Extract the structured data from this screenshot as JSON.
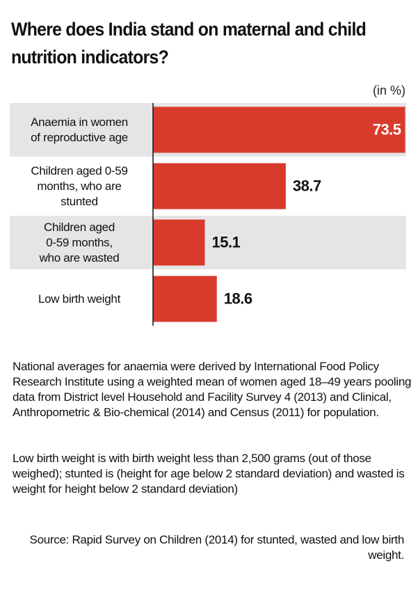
{
  "chart_data": {
    "type": "bar",
    "orientation": "horizontal",
    "title": "Where does India stand on maternal and child nutrition indicators?",
    "unit_label": "(in %)",
    "categories": [
      "Anaemia in women\nof reproductive age",
      "Children aged 0-59\nmonths, who are\nstunted",
      "Children aged\n0-59 months,\nwho are wasted",
      "Low birth weight"
    ],
    "values": [
      73.5,
      38.7,
      15.1,
      18.6
    ],
    "color": "#d83b2c",
    "xlim": [
      0,
      74
    ],
    "notes": [
      "National averages for anaemia were derived by International Food Policy Research Institute using a weighted mean of women aged 18–49 years pooling data from District level Household and Facility Survey 4 (2013) and Clinical, Anthropometric & Bio-chemical (2014) and Census (2011) for population.",
      "Low birth weight is with birth weight less than 2,500 grams (out of those weighed); stunted is (height for age below 2 standard deviation) and wasted is weight for height below 2 standard deviation)"
    ],
    "source": "Source: Rapid Survey on Children (2014) for stunted, wasted and low birth weight."
  }
}
